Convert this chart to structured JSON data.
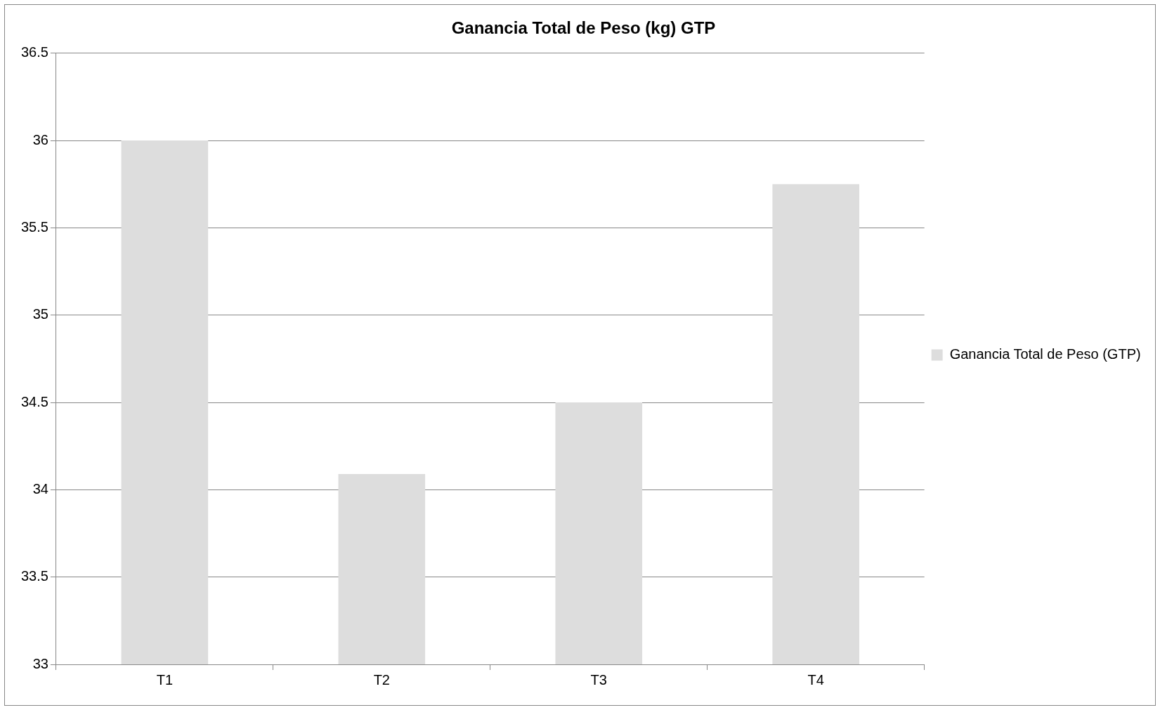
{
  "chart_data": {
    "type": "bar",
    "title": "Ganancia Total de Peso (kg) GTP",
    "categories": [
      "T1",
      "T2",
      "T3",
      "T4"
    ],
    "series": [
      {
        "name": "Ganancia Total de Peso (GTP)",
        "color": "#dddddd",
        "values": [
          36.0,
          34.09,
          34.5,
          35.75
        ]
      }
    ],
    "ylim": [
      33,
      36.5
    ],
    "yticks": [
      33,
      33.5,
      34,
      34.5,
      35,
      35.5,
      36,
      36.5
    ],
    "grid": "y",
    "legend": "right"
  }
}
